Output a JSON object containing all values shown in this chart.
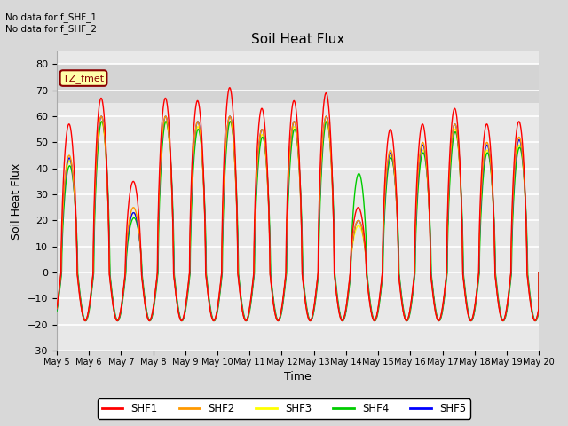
{
  "title": "Soil Heat Flux",
  "xlabel": "Time",
  "ylabel": "Soil Heat Flux",
  "ylim": [
    -30,
    85
  ],
  "yticks": [
    -30,
    -20,
    -10,
    0,
    10,
    20,
    30,
    40,
    50,
    60,
    70,
    80
  ],
  "fig_bg_color": "#d8d8d8",
  "plot_bg_color": "#e8e8e8",
  "band_color": "#c8c8c8",
  "grid_color": "white",
  "annotation_text": "No data for f_SHF_1\nNo data for f_SHF_2",
  "legend_label": "TZ_fmet",
  "series_colors": {
    "SHF1": "#ff0000",
    "SHF2": "#ff9900",
    "SHF3": "#ffff00",
    "SHF4": "#00cc00",
    "SHF5": "#0000ff"
  },
  "legend_colors": [
    "#ff0000",
    "#ff9900",
    "#ffff00",
    "#00cc00",
    "#0000ff"
  ],
  "legend_labels": [
    "SHF1",
    "SHF2",
    "SHF3",
    "SHF4",
    "SHF5"
  ],
  "xtick_days": [
    5,
    6,
    7,
    8,
    9,
    10,
    11,
    12,
    13,
    14,
    15,
    16,
    17,
    18,
    19,
    20
  ],
  "xtick_labels": [
    "May 5",
    "May 6",
    "May 7",
    "May 8",
    "May 9",
    "May 10",
    "May 11",
    "May 12",
    "May 13",
    "May 14",
    "May 15",
    "May 16",
    "May 17",
    "May 18",
    "May 19",
    "May 20"
  ],
  "amps_shf1": [
    57,
    67,
    35,
    67,
    66,
    71,
    63,
    66,
    69,
    25,
    55,
    57,
    63,
    57,
    58
  ],
  "amps_shf2": [
    45,
    60,
    25,
    60,
    58,
    60,
    55,
    58,
    60,
    20,
    47,
    50,
    57,
    50,
    52
  ],
  "amps_shf3": [
    43,
    58,
    23,
    58,
    56,
    58,
    53,
    56,
    58,
    18,
    45,
    47,
    55,
    47,
    49
  ],
  "amps_shf4": [
    41,
    58,
    21,
    58,
    55,
    58,
    52,
    55,
    58,
    38,
    44,
    46,
    54,
    46,
    48
  ],
  "amps_shf5": [
    44,
    60,
    23,
    60,
    58,
    60,
    55,
    58,
    60,
    20,
    46,
    49,
    57,
    49,
    51
  ],
  "trough": -18.5,
  "peak_time": 0.38
}
